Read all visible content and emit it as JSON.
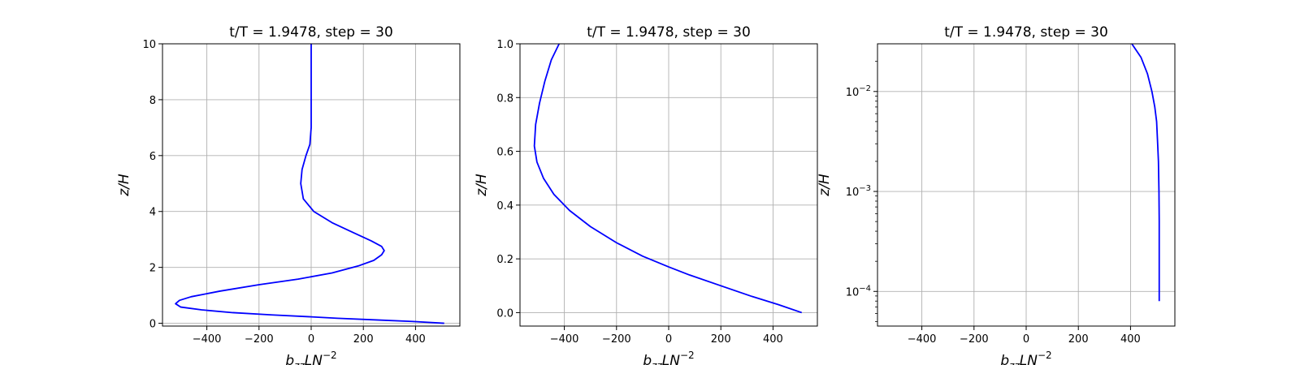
{
  "chart_data": [
    {
      "type": "line",
      "title": "t/T = 1.9478, step = 30",
      "xlabel_base": "b",
      "xlabel_sub": "zz",
      "xlabel_mid": "LN",
      "xlabel_sup": "−2",
      "ylabel": "z/H",
      "xlim": [
        -570,
        570
      ],
      "ylim": [
        -0.1,
        10
      ],
      "xscale": "linear",
      "yscale": "linear",
      "grid": true,
      "xticks": [
        -400,
        -200,
        0,
        200,
        400
      ],
      "xtick_labels": [
        "−400",
        "−200",
        "0",
        "200",
        "400"
      ],
      "yticks": [
        0,
        2,
        4,
        6,
        8,
        10
      ],
      "ytick_labels": [
        "0",
        "2",
        "4",
        "6",
        "8",
        "10"
      ],
      "series": [
        {
          "color": "#0000ff",
          "x": [
            510,
            400,
            250,
            100,
            0,
            -150,
            -300,
            -420,
            -500,
            -520,
            -505,
            -460,
            -350,
            -200,
            -50,
            80,
            180,
            240,
            270,
            280,
            270,
            230,
            160,
            80,
            10,
            -30,
            -40,
            -35,
            -20,
            -5,
            0,
            0,
            0,
            0,
            0,
            0
          ],
          "y": [
            0,
            0.06,
            0.12,
            0.18,
            0.23,
            0.3,
            0.38,
            0.48,
            0.58,
            0.7,
            0.82,
            0.95,
            1.15,
            1.38,
            1.58,
            1.8,
            2.05,
            2.25,
            2.45,
            2.6,
            2.75,
            2.95,
            3.25,
            3.6,
            4.0,
            4.45,
            5.0,
            5.5,
            6.0,
            6.4,
            7.0,
            7.5,
            8.0,
            8.5,
            9.0,
            10.0
          ]
        }
      ]
    },
    {
      "type": "line",
      "title": "t/T = 1.9478, step = 30",
      "xlabel_base": "b",
      "xlabel_sub": "zz",
      "xlabel_mid": "LN",
      "xlabel_sup": "−2",
      "ylabel": "z/H",
      "xlim": [
        -570,
        570
      ],
      "ylim": [
        -0.05,
        1.0
      ],
      "xscale": "linear",
      "yscale": "linear",
      "grid": true,
      "xticks": [
        -400,
        -200,
        0,
        200,
        400
      ],
      "xtick_labels": [
        "−400",
        "−200",
        "0",
        "200",
        "400"
      ],
      "yticks": [
        0.0,
        0.2,
        0.4,
        0.6,
        0.8,
        1.0
      ],
      "ytick_labels": [
        "0.0",
        "0.2",
        "0.4",
        "0.6",
        "0.8",
        "1.0"
      ],
      "series": [
        {
          "color": "#0000ff",
          "x": [
            510,
            420,
            320,
            200,
            80,
            0,
            -100,
            -200,
            -300,
            -380,
            -440,
            -480,
            -505,
            -515,
            -510,
            -495,
            -475,
            -450,
            -420
          ],
          "y": [
            0,
            0.03,
            0.06,
            0.1,
            0.14,
            0.17,
            0.21,
            0.26,
            0.32,
            0.38,
            0.44,
            0.5,
            0.56,
            0.62,
            0.7,
            0.78,
            0.86,
            0.94,
            1.0
          ]
        }
      ]
    },
    {
      "type": "line",
      "title": "t/T = 1.9478, step = 30",
      "xlabel_base": "b",
      "xlabel_sub": "zz",
      "xlabel_mid": "LN",
      "xlabel_sup": "−2",
      "ylabel": "z/H",
      "xlim": [
        -570,
        570
      ],
      "ylim": [
        4.5e-05,
        0.03
      ],
      "xscale": "linear",
      "yscale": "log",
      "grid": true,
      "xticks": [
        -400,
        -200,
        0,
        200,
        400
      ],
      "xtick_labels": [
        "−400",
        "−200",
        "0",
        "200",
        "400"
      ],
      "yticks": [
        0.0001,
        0.001,
        0.01
      ],
      "ytick_labels": [
        [
          "10",
          "−4"
        ],
        [
          "10",
          "−3"
        ],
        [
          "10",
          "−2"
        ]
      ],
      "series": [
        {
          "color": "#0000ff",
          "x": [
            510,
            510,
            510,
            509,
            507,
            504,
            500,
            493,
            482,
            465,
            440,
            405
          ],
          "y": [
            8e-05,
            0.0002,
            0.0005,
            0.001,
            0.002,
            0.003,
            0.005,
            0.007,
            0.01,
            0.015,
            0.022,
            0.03
          ]
        }
      ]
    }
  ]
}
